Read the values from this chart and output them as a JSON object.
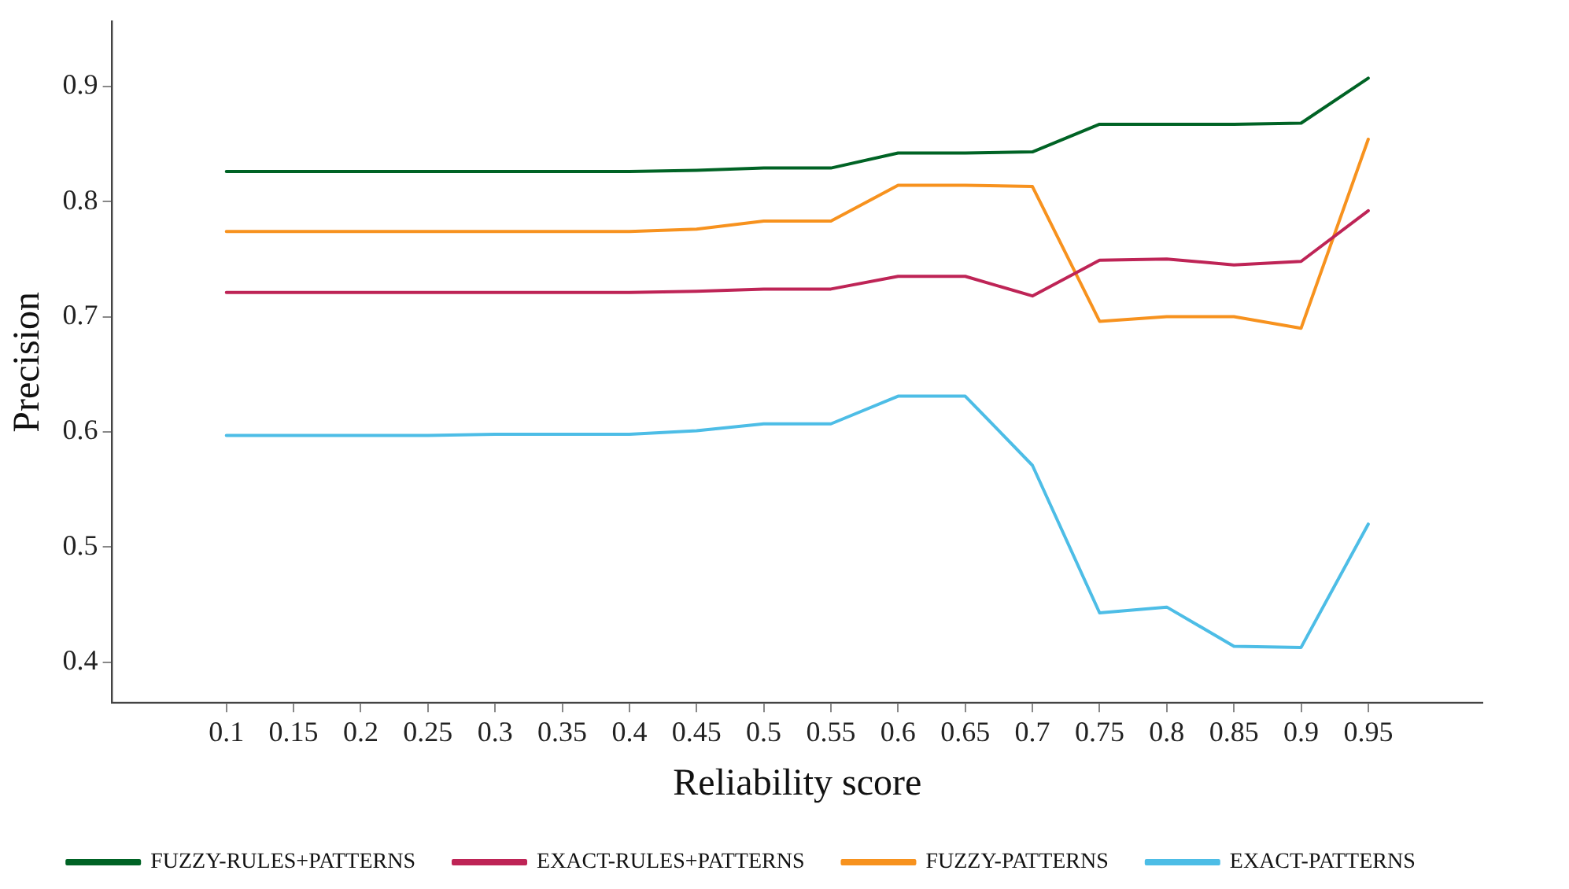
{
  "chart_data": {
    "type": "line",
    "xlabel": "Reliability score",
    "ylabel": "Precision",
    "x": [
      0.1,
      0.15,
      0.2,
      0.25,
      0.3,
      0.35,
      0.4,
      0.45,
      0.5,
      0.55,
      0.6,
      0.65,
      0.7,
      0.75,
      0.8,
      0.85,
      0.9,
      0.95
    ],
    "series": [
      {
        "name": "FUZZY-RULES+PATTERNS",
        "color": "#006325",
        "values": [
          0.826,
          0.826,
          0.826,
          0.826,
          0.826,
          0.826,
          0.826,
          0.827,
          0.829,
          0.829,
          0.842,
          0.842,
          0.843,
          0.867,
          0.867,
          0.867,
          0.868,
          0.907
        ]
      },
      {
        "name": "EXACT-RULES+PATTERNS",
        "color": "#be2456",
        "values": [
          0.721,
          0.721,
          0.721,
          0.721,
          0.721,
          0.721,
          0.721,
          0.722,
          0.724,
          0.724,
          0.735,
          0.735,
          0.718,
          0.749,
          0.75,
          0.745,
          0.748,
          0.792
        ]
      },
      {
        "name": "FUZZY-PATTERNS",
        "color": "#f7921e",
        "values": [
          0.774,
          0.774,
          0.774,
          0.774,
          0.774,
          0.774,
          0.774,
          0.776,
          0.783,
          0.783,
          0.814,
          0.814,
          0.813,
          0.696,
          0.7,
          0.7,
          0.69,
          0.854
        ]
      },
      {
        "name": "EXACT-PATTERNS",
        "color": "#4dbde6",
        "values": [
          0.597,
          0.597,
          0.597,
          0.597,
          0.598,
          0.598,
          0.598,
          0.601,
          0.607,
          0.607,
          0.631,
          0.631,
          0.571,
          0.443,
          0.448,
          0.414,
          0.413,
          0.52
        ]
      }
    ],
    "xlim": [
      0.015,
      1.035
    ],
    "xticks": [
      0.1,
      0.15,
      0.2,
      0.25,
      0.3,
      0.35,
      0.4,
      0.45,
      0.5,
      0.55,
      0.6,
      0.65,
      0.7,
      0.75,
      0.8,
      0.85,
      0.9,
      0.95
    ],
    "ylim": [
      0.365,
      0.956
    ],
    "yticks": [
      0.4,
      0.5,
      0.6,
      0.7,
      0.8,
      0.9
    ],
    "grid": false,
    "legend": "bottom",
    "marker": "none",
    "line_style": "solid"
  }
}
